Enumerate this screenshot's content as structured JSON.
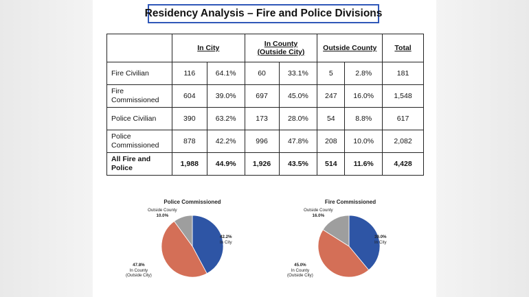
{
  "title": "Residency Analysis – Fire and Police Divisions",
  "table": {
    "headers": [
      "In City",
      "In County\n(Outside City)",
      "Outside County",
      "Total"
    ],
    "rows": [
      {
        "label": "Fire Civilian",
        "in_city": "116",
        "in_city_pct": "64.1%",
        "in_county": "60",
        "in_county_pct": "33.1%",
        "outside": "5",
        "outside_pct": "2.8%",
        "total": "181"
      },
      {
        "label": "Fire\nCommissioned",
        "in_city": "604",
        "in_city_pct": "39.0%",
        "in_county": "697",
        "in_county_pct": "45.0%",
        "outside": "247",
        "outside_pct": "16.0%",
        "total": "1,548"
      },
      {
        "label": "Police Civilian",
        "in_city": "390",
        "in_city_pct": "63.2%",
        "in_county": "173",
        "in_county_pct": "28.0%",
        "outside": "54",
        "outside_pct": "8.8%",
        "total": "617"
      },
      {
        "label": "Police\nCommissioned",
        "in_city": "878",
        "in_city_pct": "42.2%",
        "in_county": "996",
        "in_county_pct": "47.8%",
        "outside": "208",
        "outside_pct": "10.0%",
        "total": "2,082"
      },
      {
        "label": "All Fire and\nPolice",
        "in_city": "1,988",
        "in_city_pct": "44.9%",
        "in_county": "1,926",
        "in_county_pct": "43.5%",
        "outside": "514",
        "outside_pct": "11.6%",
        "total": "4,428"
      }
    ]
  },
  "chart_data": [
    {
      "type": "pie",
      "title": "Police Commissioned",
      "slices": [
        {
          "name": "In City",
          "value": 42.2,
          "label": "42.2%",
          "color": "#2e55a5"
        },
        {
          "name": "In County (Outside City)",
          "value": 47.8,
          "label": "47.8%",
          "color": "#d46f57"
        },
        {
          "name": "Outside County",
          "value": 10.0,
          "label": "10.0%",
          "color": "#9e9e9e"
        }
      ]
    },
    {
      "type": "pie",
      "title": "Fire Commissioned",
      "slices": [
        {
          "name": "In City",
          "value": 39.0,
          "label": "39.0%",
          "color": "#2e55a5"
        },
        {
          "name": "In County (Outside City)",
          "value": 45.0,
          "label": "45.0%",
          "color": "#d46f57"
        },
        {
          "name": "Outside County",
          "value": 16.0,
          "label": "16.0%",
          "color": "#9e9e9e"
        }
      ]
    }
  ],
  "labels": {
    "in_city": "In City",
    "in_county_1": "In County",
    "in_county_2": "(Outside City)",
    "outside_county": "Outside County"
  }
}
